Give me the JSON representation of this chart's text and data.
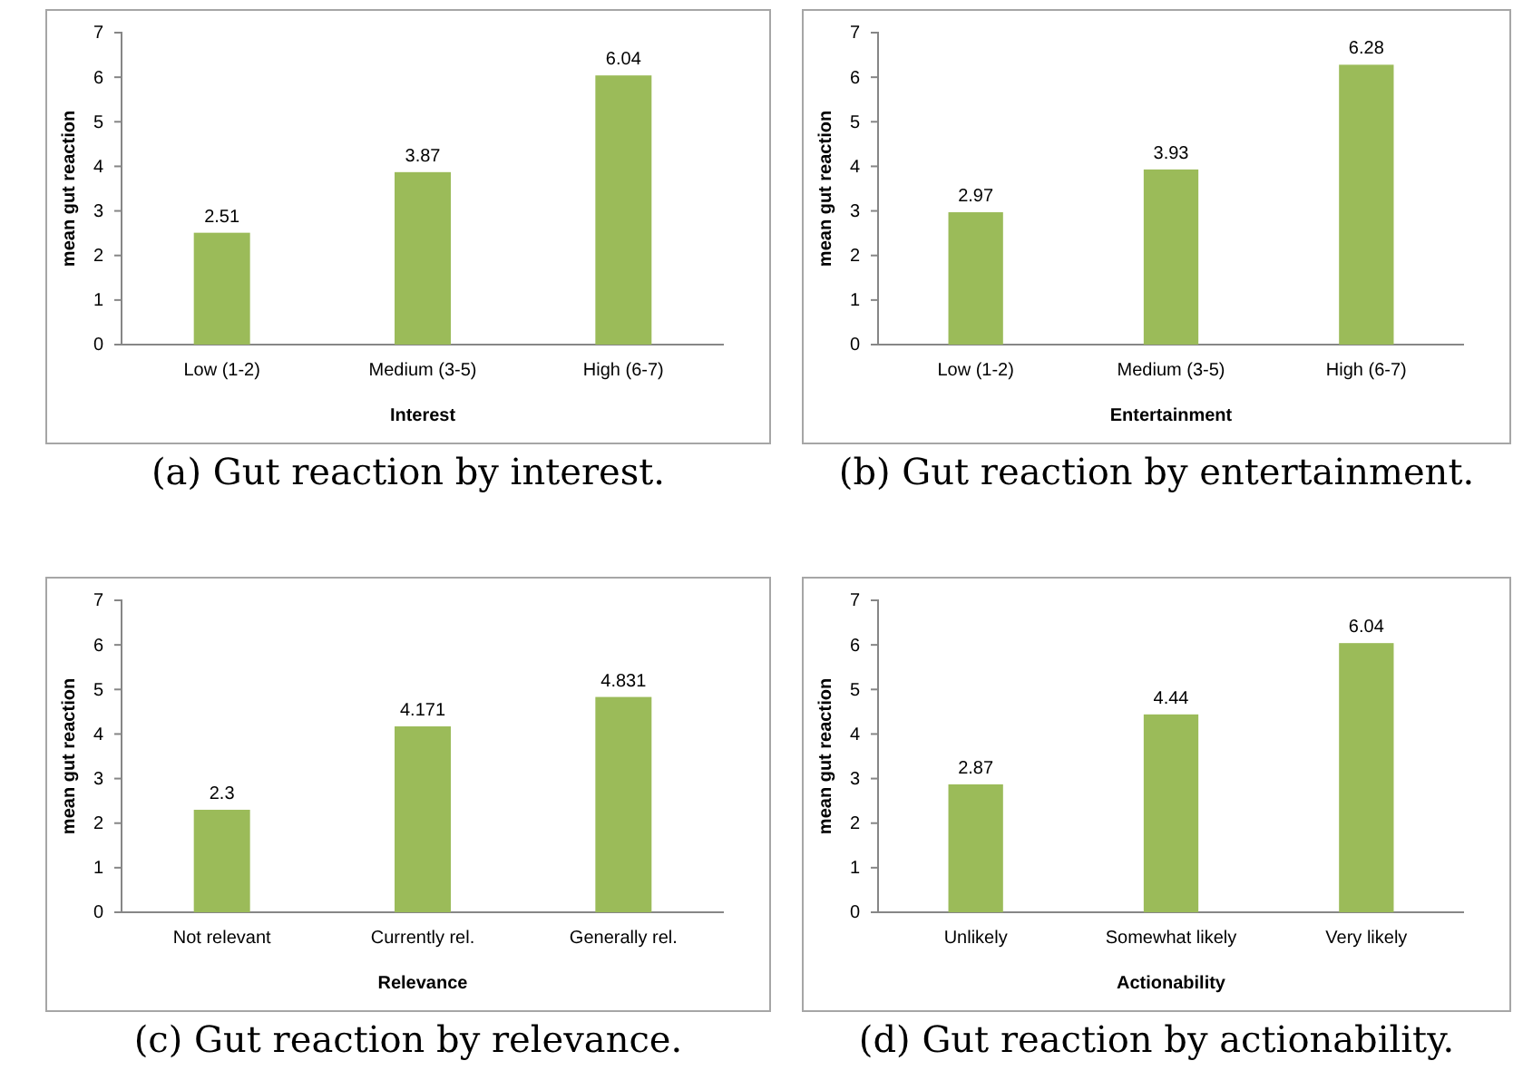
{
  "chart_data": [
    {
      "type": "bar",
      "categories": [
        "Low (1-2)",
        "Medium (3-5)",
        "High (6-7)"
      ],
      "values": [
        2.51,
        3.87,
        6.04
      ],
      "color": "#9bbb59",
      "xlabel": "Interest",
      "ylabel": "mean gut reaction",
      "ylim": [
        0,
        7
      ],
      "yticks": [
        0,
        1,
        2,
        3,
        4,
        5,
        6,
        7
      ],
      "data_labels": true,
      "grid": false,
      "annotations": [
        "(a) Gut reaction by interest."
      ]
    },
    {
      "type": "bar",
      "categories": [
        "Low (1-2)",
        "Medium (3-5)",
        "High (6-7)"
      ],
      "values": [
        2.97,
        3.93,
        6.28
      ],
      "color": "#9bbb59",
      "xlabel": "Entertainment",
      "ylabel": "mean gut reaction",
      "ylim": [
        0,
        7
      ],
      "yticks": [
        0,
        1,
        2,
        3,
        4,
        5,
        6,
        7
      ],
      "data_labels": true,
      "grid": false,
      "annotations": [
        "(b) Gut reaction by entertainment."
      ]
    },
    {
      "type": "bar",
      "categories": [
        "Not relevant",
        "Currently rel.",
        "Generally rel."
      ],
      "values": [
        2.3,
        4.171,
        4.831
      ],
      "color": "#9bbb59",
      "xlabel": "Relevance",
      "ylabel": "mean gut reaction",
      "ylim": [
        0,
        7
      ],
      "yticks": [
        0,
        1,
        2,
        3,
        4,
        5,
        6,
        7
      ],
      "data_labels": true,
      "grid": false,
      "annotations": [
        "(c) Gut reaction by relevance."
      ]
    },
    {
      "type": "bar",
      "categories": [
        "Unlikely",
        "Somewhat likely",
        "Very likely"
      ],
      "values": [
        2.87,
        4.44,
        6.04
      ],
      "color": "#9bbb59",
      "xlabel": "Actionability",
      "ylabel": "mean gut reaction",
      "ylim": [
        0,
        7
      ],
      "yticks": [
        0,
        1,
        2,
        3,
        4,
        5,
        6,
        7
      ],
      "data_labels": true,
      "grid": false,
      "annotations": [
        "(d) Gut reaction by actionability."
      ]
    }
  ]
}
